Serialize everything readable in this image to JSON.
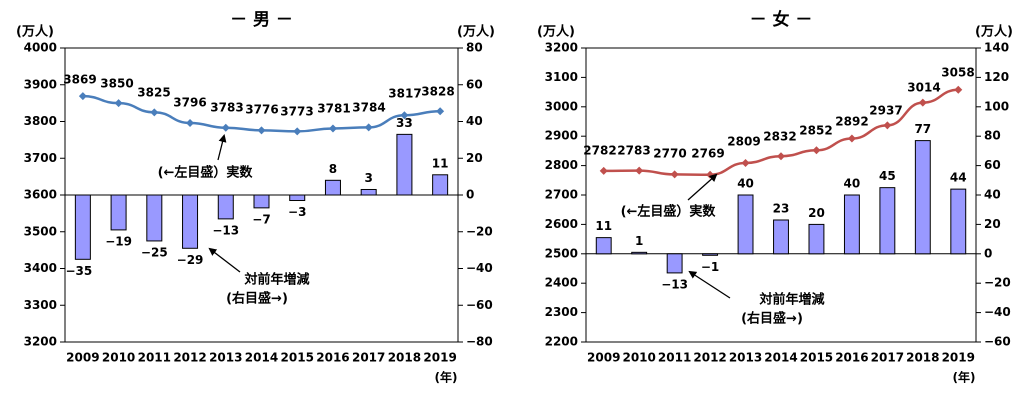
{
  "chart_data": [
    {
      "type": "bar",
      "title": "－ 男 －",
      "left_unit": "(万人)",
      "right_unit": "(万人)",
      "x_unit": "(年)",
      "categories": [
        "2009",
        "2010",
        "2011",
        "2012",
        "2013",
        "2014",
        "2015",
        "2016",
        "2017",
        "2018",
        "2019"
      ],
      "left_axis": {
        "min": 3200,
        "max": 4000,
        "ticks": [
          4000,
          3900,
          3800,
          3700,
          3600,
          3500,
          3400,
          3300,
          3200
        ]
      },
      "right_axis": {
        "min": -80,
        "max": 80,
        "ticks": [
          80,
          60,
          40,
          20,
          0,
          -20,
          -40,
          -60,
          -80
        ]
      },
      "line_series": {
        "values": [
          3869,
          3850,
          3825,
          3796,
          3783,
          3776,
          3773,
          3781,
          3784,
          3817,
          3828
        ],
        "color": "#4a7ebb"
      },
      "bar_series": {
        "values": [
          -35,
          -19,
          -25,
          -29,
          -13,
          -7,
          -3,
          8,
          3,
          33,
          11
        ],
        "color": "#9999ff"
      },
      "line_annotation": "(←左目盛）実数",
      "bar_annotation_lines": [
        "対前年増減",
        "(右目盛→)"
      ]
    },
    {
      "type": "bar",
      "title": "－ 女 －",
      "left_unit": "(万人)",
      "right_unit": "(万人)",
      "x_unit": "(年)",
      "categories": [
        "2009",
        "2010",
        "2011",
        "2012",
        "2013",
        "2014",
        "2015",
        "2016",
        "2017",
        "2018",
        "2019"
      ],
      "left_axis": {
        "min": 2200,
        "max": 3200,
        "ticks": [
          3200,
          3100,
          3000,
          2900,
          2800,
          2700,
          2600,
          2500,
          2400,
          2300,
          2200
        ]
      },
      "right_axis": {
        "min": -60,
        "max": 140,
        "ticks": [
          140,
          120,
          100,
          80,
          60,
          40,
          20,
          0,
          -20,
          -40,
          -60
        ]
      },
      "line_series": {
        "values": [
          2782,
          2783,
          2770,
          2769,
          2809,
          2832,
          2852,
          2892,
          2937,
          3014,
          3058
        ],
        "color": "#c0504d"
      },
      "bar_series": {
        "values": [
          11,
          1,
          -13,
          -1,
          40,
          23,
          20,
          40,
          45,
          77,
          44
        ],
        "color": "#9999ff"
      },
      "line_annotation": "(←左目盛）実数",
      "bar_annotation_lines": [
        "対前年増減",
        "(右目盛→)"
      ]
    }
  ]
}
